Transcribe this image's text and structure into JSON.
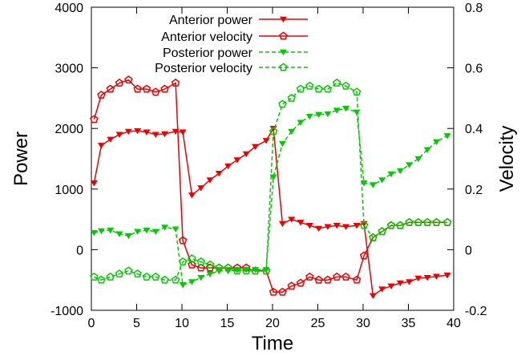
{
  "chart_data": {
    "type": "line",
    "title": "",
    "xlabel": "Time",
    "ylabel_left": "Power",
    "ylabel_right": "Velocity",
    "xlim": [
      0,
      40
    ],
    "ylim_left": [
      -1000,
      4000
    ],
    "ylim_right": [
      -0.2,
      0.8
    ],
    "xticks": [
      0,
      5,
      10,
      15,
      20,
      25,
      30,
      35,
      40
    ],
    "xtick_labels": [
      "0",
      "5",
      "10",
      "15",
      "20",
      "25",
      "30",
      "35",
      "40"
    ],
    "yticks_left": [
      -1000,
      0,
      1000,
      2000,
      3000,
      4000
    ],
    "ytick_labels_left": [
      "-1000",
      "0",
      "1000",
      "2000",
      "3000",
      "4000"
    ],
    "yticks_right": [
      -0.2,
      0,
      0.2,
      0.4,
      0.6,
      0.8
    ],
    "ytick_labels_right": [
      "-0.2",
      "0",
      "0.2",
      "0.4",
      "0.6",
      "0.8"
    ],
    "grid": false,
    "legend_position": "top-left",
    "x": [
      0.3,
      1.1,
      2.1,
      3.1,
      4.1,
      5.1,
      6.1,
      7.1,
      8.1,
      9.3,
      10.1,
      11.1,
      12.1,
      13.1,
      14.1,
      15.1,
      16.1,
      17.1,
      18.1,
      19.3,
      20.1,
      21.1,
      22.1,
      23.1,
      24.1,
      25.1,
      26.1,
      27.1,
      28.1,
      29.3,
      30.1,
      31.1,
      32.1,
      33.1,
      34.1,
      35.1,
      36.1,
      37.1,
      38.1,
      39.3
    ],
    "series": [
      {
        "name": "Anterior power",
        "axis": "left",
        "color": "#ee0000",
        "line": "solid",
        "marker": "triangle-down",
        "values": [
          1100,
          1720,
          1820,
          1900,
          1950,
          1960,
          1940,
          1900,
          1910,
          1950,
          1940,
          900,
          1020,
          1150,
          1260,
          1380,
          1480,
          1580,
          1700,
          1800,
          2000,
          430,
          500,
          450,
          400,
          350,
          380,
          400,
          380,
          400,
          430,
          -760,
          -650,
          -600,
          -550,
          -530,
          -470,
          -460,
          -440,
          -420
        ]
      },
      {
        "name": "Anterior velocity",
        "axis": "right",
        "color": "#ee0000",
        "line": "solid",
        "marker": "pentagon",
        "values": [
          0.43,
          0.51,
          0.53,
          0.55,
          0.56,
          0.53,
          0.53,
          0.52,
          0.53,
          0.55,
          0.03,
          -0.05,
          -0.06,
          -0.06,
          -0.06,
          -0.06,
          -0.06,
          -0.06,
          -0.07,
          -0.07,
          -0.14,
          -0.14,
          -0.12,
          -0.11,
          -0.09,
          -0.1,
          -0.1,
          -0.09,
          -0.09,
          -0.1,
          -0.02,
          0.04,
          0.06,
          0.08,
          0.08,
          0.09,
          0.09,
          0.09,
          0.09,
          0.09
        ]
      },
      {
        "name": "Posterior power",
        "axis": "left",
        "color": "#00cc00",
        "line": "dashed",
        "marker": "triangle-down",
        "values": [
          280,
          310,
          320,
          260,
          230,
          300,
          320,
          300,
          370,
          340,
          -580,
          -530,
          -460,
          -400,
          -350,
          -350,
          -340,
          -330,
          -330,
          -330,
          1200,
          1750,
          1950,
          2100,
          2200,
          2230,
          2240,
          2300,
          2330,
          2270,
          1100,
          1070,
          1150,
          1250,
          1300,
          1400,
          1500,
          1650,
          1780,
          1880
        ]
      },
      {
        "name": "Posterior velocity",
        "axis": "right",
        "color": "#00cc00",
        "line": "dashed",
        "marker": "pentagon",
        "values": [
          -0.09,
          -0.1,
          -0.09,
          -0.08,
          -0.07,
          -0.08,
          -0.09,
          -0.09,
          -0.1,
          -0.1,
          -0.04,
          -0.03,
          -0.04,
          -0.05,
          -0.06,
          -0.06,
          -0.07,
          -0.07,
          -0.07,
          -0.07,
          0.39,
          0.48,
          0.5,
          0.53,
          0.54,
          0.53,
          0.53,
          0.55,
          0.54,
          0.52,
          0.08,
          0.04,
          0.06,
          0.08,
          0.08,
          0.09,
          0.09,
          0.09,
          0.09,
          0.09
        ]
      }
    ]
  }
}
